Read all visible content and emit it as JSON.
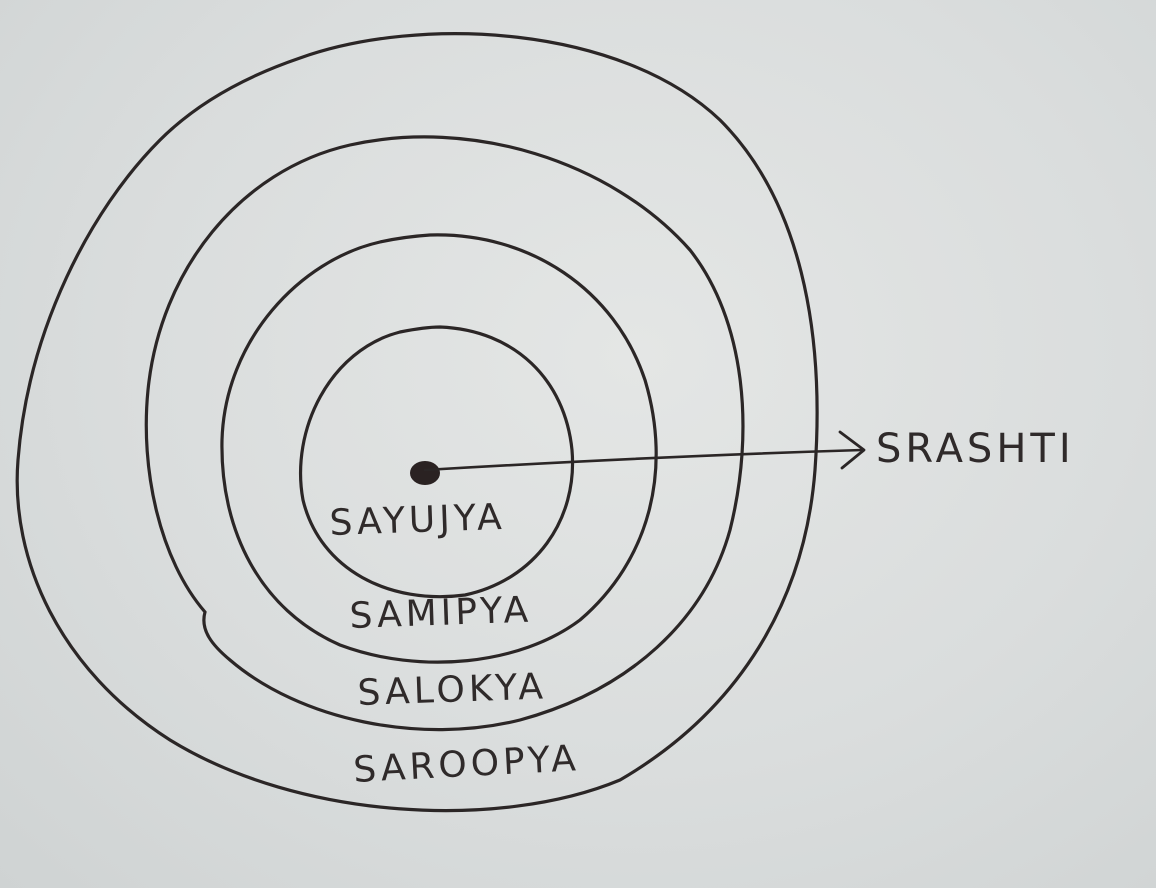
{
  "diagram": {
    "rings": [
      {
        "label": "SAYUJYA"
      },
      {
        "label": "SAMIPYA"
      },
      {
        "label": "SALOKYA"
      },
      {
        "label": "SAROOPYA"
      }
    ],
    "arrow_label": "SRASHTI",
    "colors": {
      "ink": "#2b2626",
      "paper": "#dcdfdf"
    }
  }
}
